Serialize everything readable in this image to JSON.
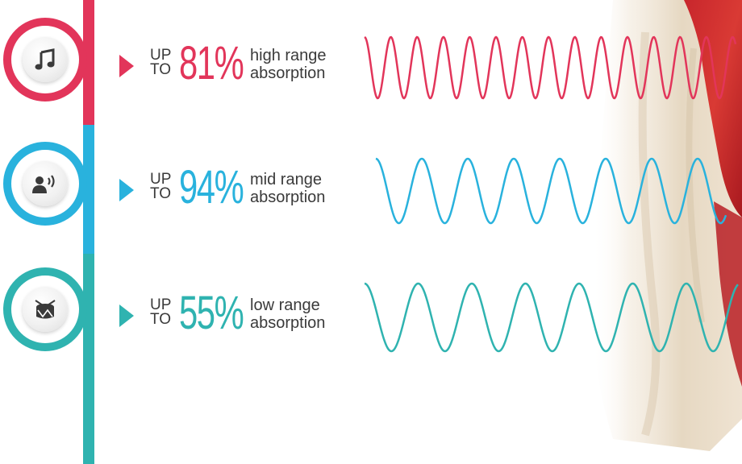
{
  "colors": {
    "high": "#e2355a",
    "mid": "#29b2dd",
    "low": "#2fb3b0",
    "text": "#3a3a3a"
  },
  "rows": [
    {
      "id": "high",
      "icon": "music-note-icon",
      "up": "UP",
      "to": "TO",
      "percent": "81%",
      "range": "high range",
      "absorption": "absorption"
    },
    {
      "id": "mid",
      "icon": "speaking-person-icon",
      "up": "UP",
      "to": "TO",
      "percent": "94%",
      "range": "mid range",
      "absorption": "absorption"
    },
    {
      "id": "low",
      "icon": "drum-icon",
      "up": "UP",
      "to": "TO",
      "percent": "55%",
      "range": "low range",
      "absorption": "absorption"
    }
  ]
}
